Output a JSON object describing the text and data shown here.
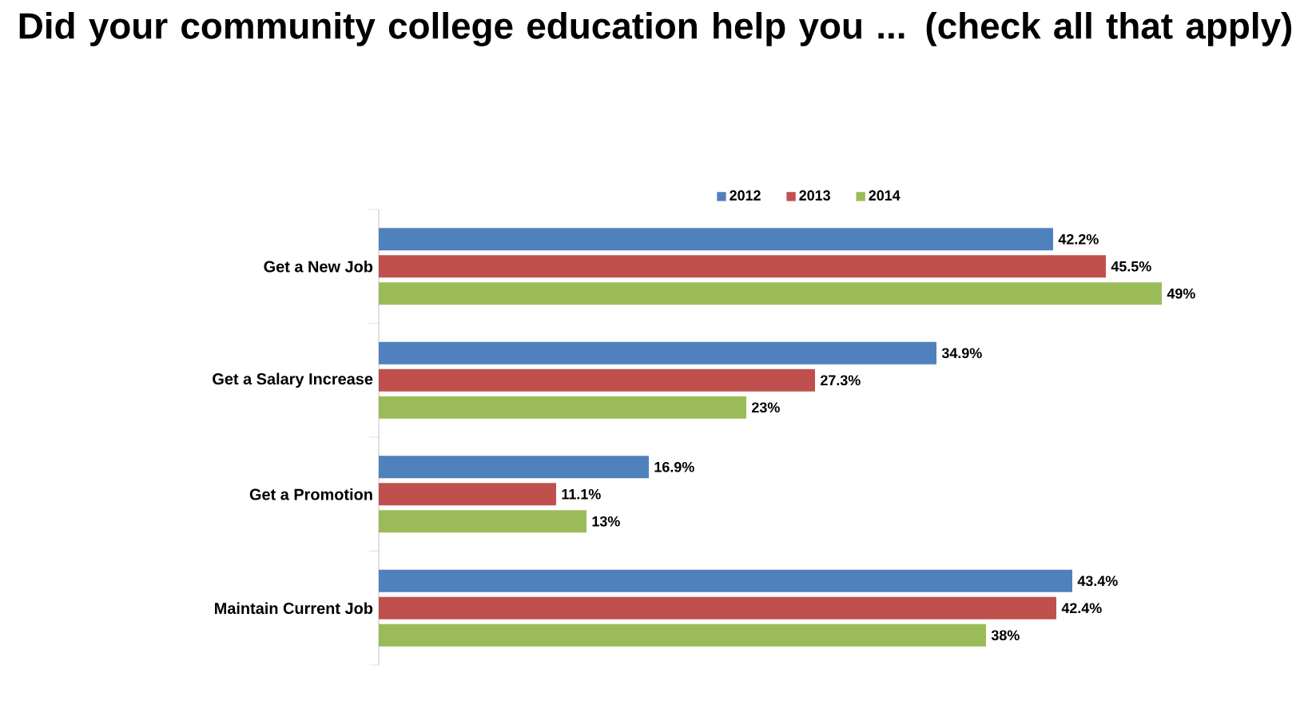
{
  "chart_data": {
    "type": "bar",
    "orientation": "horizontal",
    "title": "Did your community college education help you ... (check all that apply)",
    "categories": [
      "Get a New Job",
      "Get a Salary Increase",
      "Get a Promotion",
      "Maintain Current Job"
    ],
    "series": [
      {
        "name": "2012",
        "color": "#4f81bd",
        "values": [
          42.2,
          34.9,
          16.9,
          43.4
        ],
        "value_labels": [
          "42.2%",
          "34.9%",
          "16.9%",
          "43.4%"
        ]
      },
      {
        "name": "2013",
        "color": "#c0504d",
        "values": [
          45.5,
          27.3,
          11.1,
          42.4
        ],
        "value_labels": [
          "45.5%",
          "27.3%",
          "11.1%",
          "42.4%"
        ]
      },
      {
        "name": "2014",
        "color": "#9bbb59",
        "values": [
          49,
          23,
          13,
          38
        ],
        "value_labels": [
          "49%",
          "23%",
          "13%",
          "38%"
        ]
      }
    ],
    "legend": "top"
  }
}
